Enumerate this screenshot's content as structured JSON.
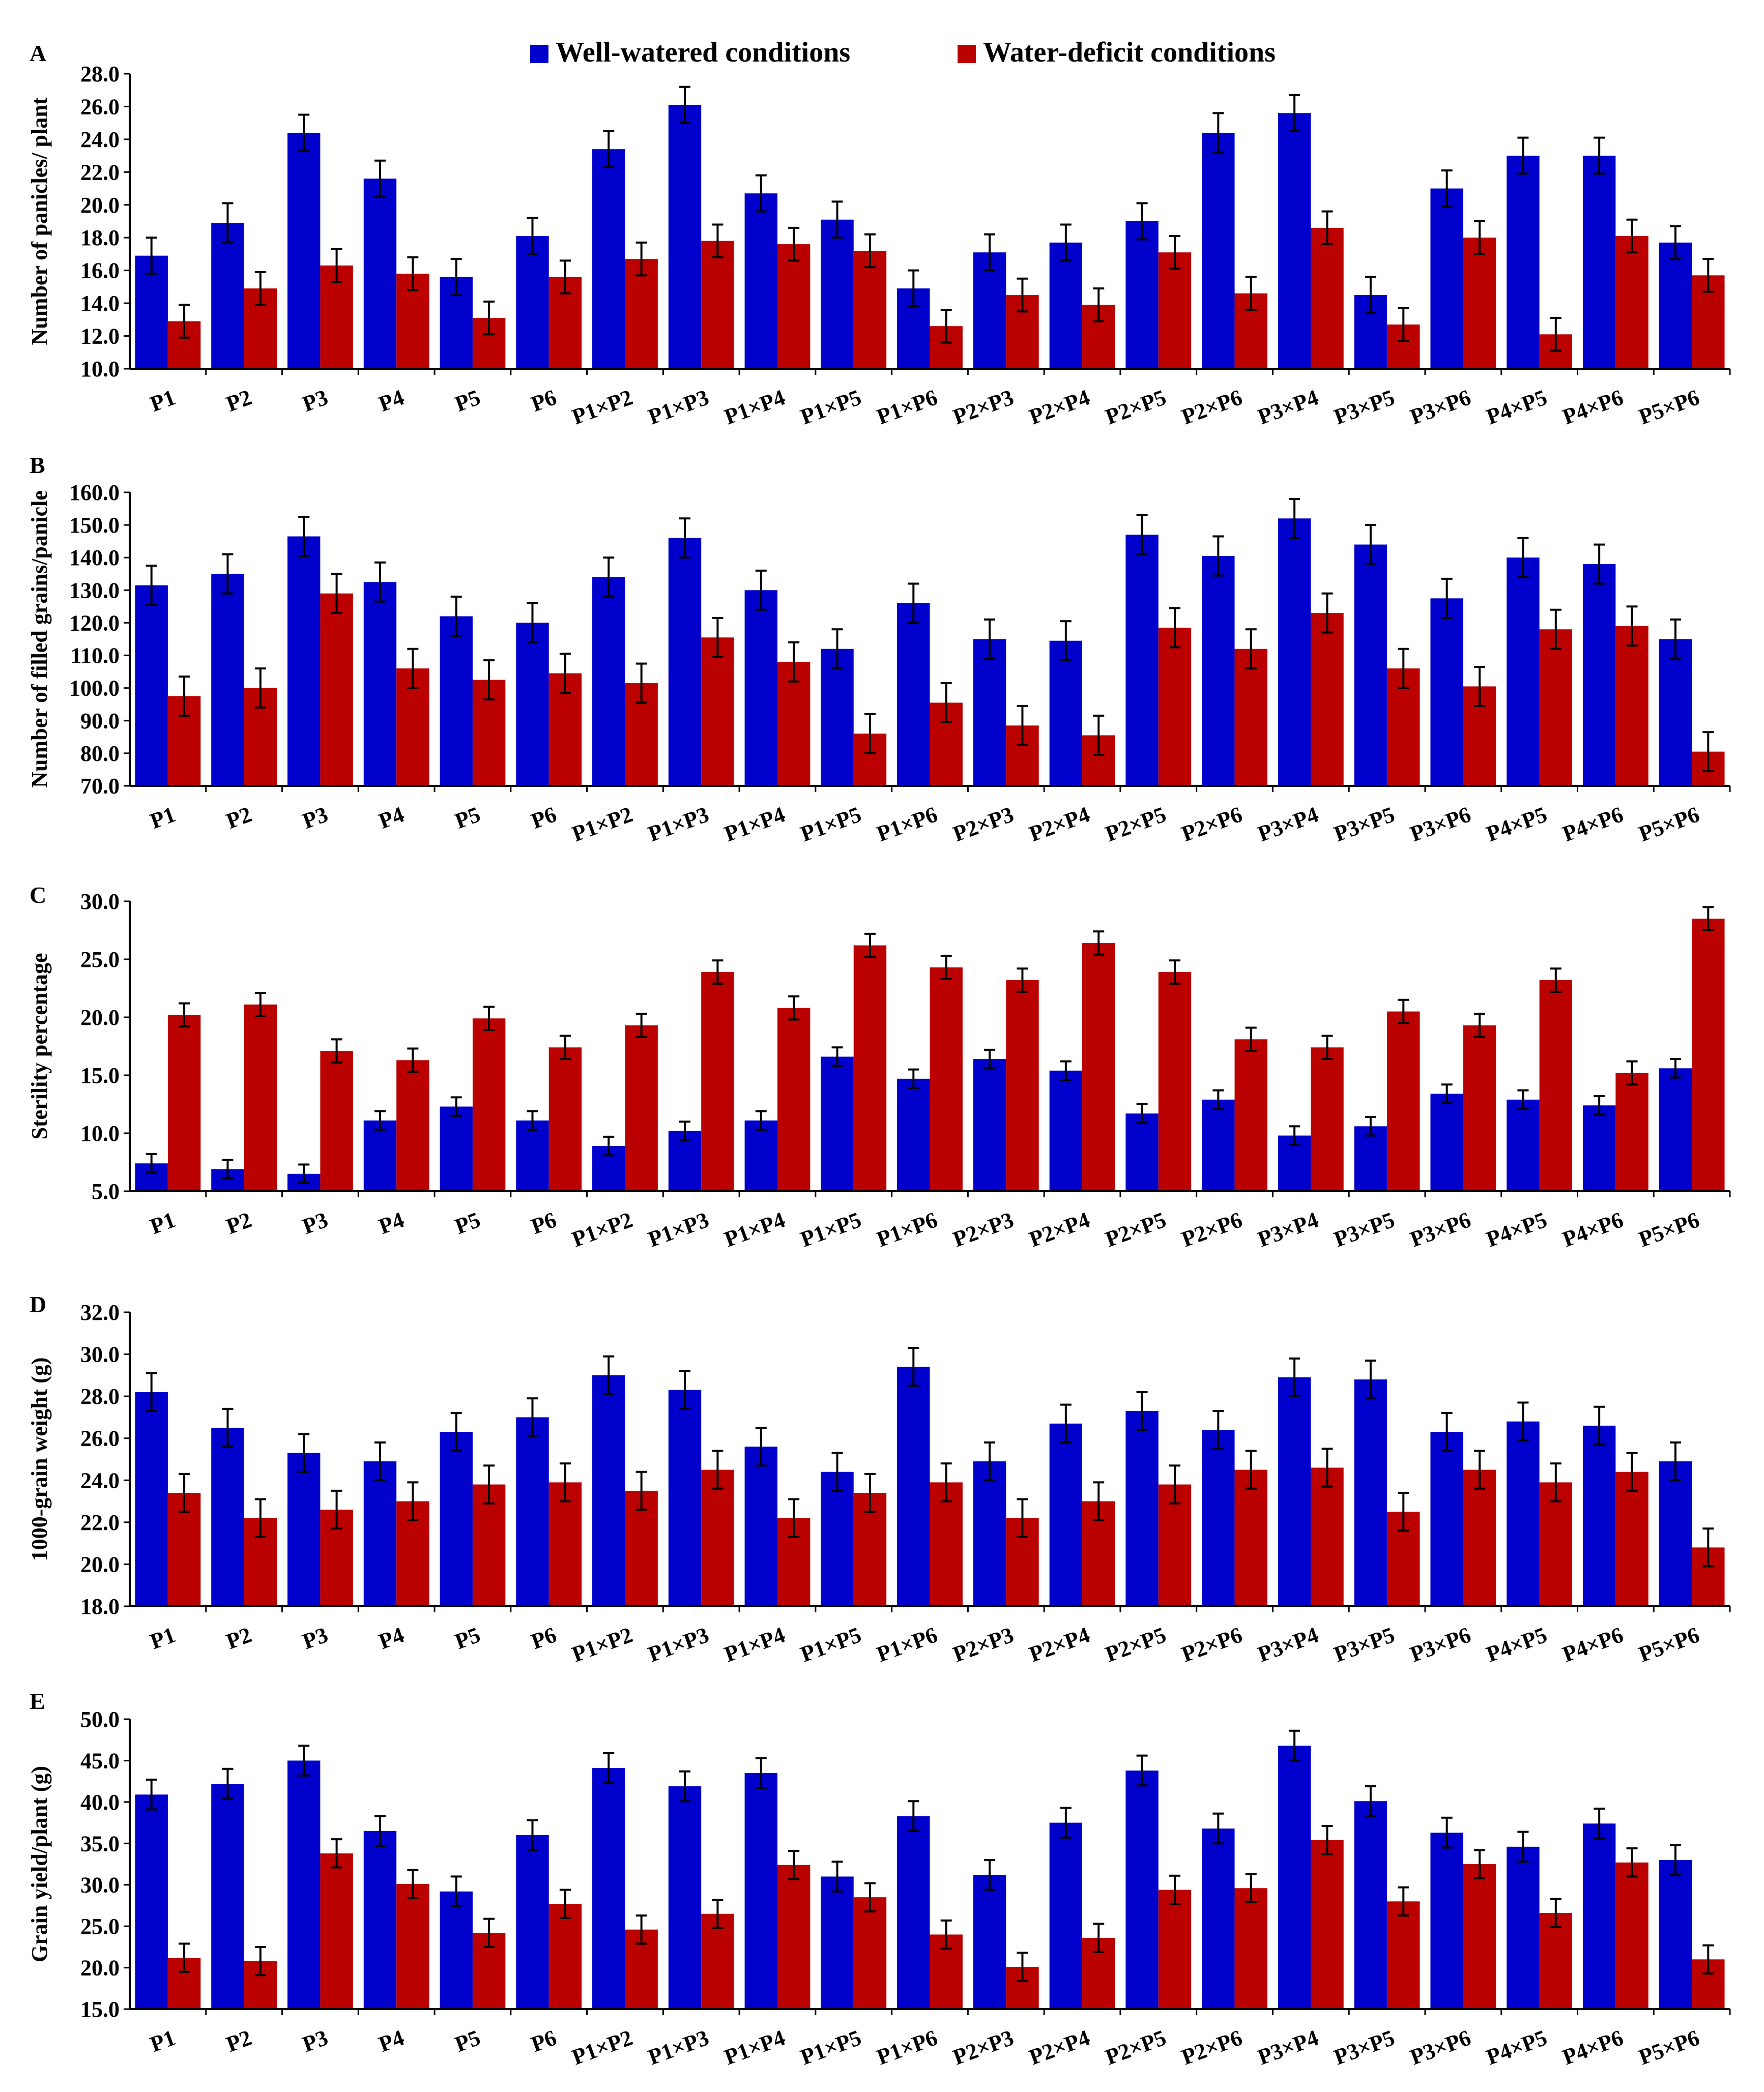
{
  "legend": {
    "well_label": "Well-watered conditions",
    "deficit_label": "Water-deficit conditions"
  },
  "colors": {
    "well": "#0000CC",
    "deficit": "#BB0000",
    "axis": "#000000"
  },
  "chart_data": [
    {
      "type": "bar",
      "panel": "A",
      "ylabel": "Number of panicles/ plant",
      "ylim": [
        10,
        28
      ],
      "ystep": 2,
      "decimals": 1,
      "categories": [
        "P1",
        "P2",
        "P3",
        "P4",
        "P5",
        "P6",
        "P1×P2",
        "P1×P3",
        "P1×P4",
        "P1×P5",
        "P1×P6",
        "P2×P3",
        "P2×P4",
        "P2×P5",
        "P2×P6",
        "P3×P4",
        "P3×P5",
        "P3×P6",
        "P4×P5",
        "P4×P6",
        "P5×P6"
      ],
      "series": [
        {
          "name": "Well-watered conditions",
          "values": [
            16.9,
            18.9,
            24.4,
            21.6,
            15.6,
            18.1,
            23.4,
            26.1,
            20.7,
            19.1,
            14.9,
            17.1,
            17.7,
            19.0,
            24.4,
            25.6,
            14.5,
            21.0,
            23.0,
            23.0,
            17.7
          ],
          "errors": [
            1.1,
            1.2,
            1.1,
            1.1,
            1.1,
            1.1,
            1.1,
            1.1,
            1.1,
            1.1,
            1.1,
            1.1,
            1.1,
            1.1,
            1.2,
            1.1,
            1.1,
            1.1,
            1.1,
            1.1,
            1.0
          ]
        },
        {
          "name": "Water-deficit conditions",
          "values": [
            12.9,
            14.9,
            16.3,
            15.8,
            13.1,
            15.6,
            16.7,
            17.8,
            17.6,
            17.2,
            12.6,
            14.5,
            13.9,
            17.1,
            14.6,
            18.6,
            12.7,
            18.0,
            12.1,
            18.1,
            15.7
          ],
          "errors": [
            1.0,
            1.0,
            1.0,
            1.0,
            1.0,
            1.0,
            1.0,
            1.0,
            1.0,
            1.0,
            1.0,
            1.0,
            1.0,
            1.0,
            1.0,
            1.0,
            1.0,
            1.0,
            1.0,
            1.0,
            1.0
          ]
        }
      ]
    },
    {
      "type": "bar",
      "panel": "B",
      "ylabel": "Number of filled grains/panicle",
      "ylim": [
        70,
        160
      ],
      "ystep": 10,
      "decimals": 1,
      "categories": [
        "P1",
        "P2",
        "P3",
        "P4",
        "P5",
        "P6",
        "P1×P2",
        "P1×P3",
        "P1×P4",
        "P1×P5",
        "P1×P6",
        "P2×P3",
        "P2×P4",
        "P2×P5",
        "P2×P6",
        "P3×P4",
        "P3×P5",
        "P3×P6",
        "P4×P5",
        "P4×P6",
        "P5×P6"
      ],
      "series": [
        {
          "name": "Well-watered conditions",
          "values": [
            131.5,
            135.0,
            146.5,
            132.5,
            122.0,
            120.0,
            134.0,
            146.0,
            130.0,
            112.0,
            126.0,
            115.0,
            114.5,
            147.0,
            140.5,
            152.0,
            144.0,
            127.5,
            140.0,
            138.0,
            115.0
          ],
          "errors": [
            6,
            6,
            6,
            6,
            6,
            6,
            6,
            6,
            6,
            6,
            6,
            6,
            6,
            6,
            6,
            6,
            6,
            6,
            6,
            6,
            6
          ]
        },
        {
          "name": "Water-deficit conditions",
          "values": [
            97.5,
            100.0,
            129.0,
            106.0,
            102.5,
            104.5,
            101.5,
            115.5,
            108.0,
            86.0,
            95.5,
            88.5,
            85.5,
            118.5,
            112.0,
            123.0,
            106.0,
            100.5,
            118.0,
            119.0,
            80.5
          ],
          "errors": [
            6,
            6,
            6,
            6,
            6,
            6,
            6,
            6,
            6,
            6,
            6,
            6,
            6,
            6,
            6,
            6,
            6,
            6,
            6,
            6,
            6
          ]
        }
      ]
    },
    {
      "type": "bar",
      "panel": "C",
      "ylabel": "Sterility percentage",
      "ylim": [
        5,
        30
      ],
      "ystep": 5,
      "decimals": 1,
      "categories": [
        "P1",
        "P2",
        "P3",
        "P4",
        "P5",
        "P6",
        "P1×P2",
        "P1×P3",
        "P1×P4",
        "P1×P5",
        "P1×P6",
        "P2×P3",
        "P2×P4",
        "P2×P5",
        "P2×P6",
        "P3×P4",
        "P3×P5",
        "P3×P6",
        "P4×P5",
        "P4×P6",
        "P5×P6"
      ],
      "series": [
        {
          "name": "Well-watered conditions",
          "values": [
            7.4,
            6.9,
            6.5,
            11.1,
            12.3,
            11.1,
            8.9,
            10.2,
            11.1,
            16.6,
            14.7,
            16.4,
            15.4,
            11.7,
            12.9,
            9.8,
            10.6,
            13.4,
            12.9,
            12.4,
            15.6
          ],
          "errors": [
            0.8,
            0.8,
            0.8,
            0.8,
            0.8,
            0.8,
            0.8,
            0.8,
            0.8,
            0.8,
            0.8,
            0.8,
            0.8,
            0.8,
            0.8,
            0.8,
            0.8,
            0.8,
            0.8,
            0.8,
            0.8
          ]
        },
        {
          "name": "Water-deficit conditions",
          "values": [
            20.2,
            21.1,
            17.1,
            16.3,
            19.9,
            17.4,
            19.3,
            23.9,
            20.8,
            26.2,
            24.3,
            23.2,
            26.4,
            23.9,
            18.1,
            17.4,
            20.5,
            19.3,
            23.2,
            15.2,
            28.5
          ],
          "errors": [
            1.0,
            1.0,
            1.0,
            1.0,
            1.0,
            1.0,
            1.0,
            1.0,
            1.0,
            1.0,
            1.0,
            1.0,
            1.0,
            1.0,
            1.0,
            1.0,
            1.0,
            1.0,
            1.0,
            1.0,
            1.0
          ]
        }
      ]
    },
    {
      "type": "bar",
      "panel": "D",
      "ylabel": "1000-grain weight  (g)",
      "ylim": [
        18,
        32
      ],
      "ystep": 2,
      "decimals": 1,
      "categories": [
        "P1",
        "P2",
        "P3",
        "P4",
        "P5",
        "P6",
        "P1×P2",
        "P1×P3",
        "P1×P4",
        "P1×P5",
        "P1×P6",
        "P2×P3",
        "P2×P4",
        "P2×P5",
        "P2×P6",
        "P3×P4",
        "P3×P5",
        "P3×P6",
        "P4×P5",
        "P4×P6",
        "P5×P6"
      ],
      "series": [
        {
          "name": "Well-watered conditions",
          "values": [
            28.2,
            26.5,
            25.3,
            24.9,
            26.3,
            27.0,
            29.0,
            28.3,
            25.6,
            24.4,
            29.4,
            24.9,
            26.7,
            27.3,
            26.4,
            28.9,
            28.8,
            26.3,
            26.8,
            26.6,
            24.9
          ],
          "errors": [
            0.9,
            0.9,
            0.9,
            0.9,
            0.9,
            0.9,
            0.9,
            0.9,
            0.9,
            0.9,
            0.9,
            0.9,
            0.9,
            0.9,
            0.9,
            0.9,
            0.9,
            0.9,
            0.9,
            0.9,
            0.9
          ]
        },
        {
          "name": "Water-deficit conditions",
          "values": [
            23.4,
            22.2,
            22.6,
            23.0,
            23.8,
            23.9,
            23.5,
            24.5,
            22.2,
            23.4,
            23.9,
            22.2,
            23.0,
            23.8,
            24.5,
            24.6,
            22.5,
            24.5,
            23.9,
            24.4,
            20.8
          ],
          "errors": [
            0.9,
            0.9,
            0.9,
            0.9,
            0.9,
            0.9,
            0.9,
            0.9,
            0.9,
            0.9,
            0.9,
            0.9,
            0.9,
            0.9,
            0.9,
            0.9,
            0.9,
            0.9,
            0.9,
            0.9,
            0.9
          ]
        }
      ]
    },
    {
      "type": "bar",
      "panel": "E",
      "ylabel": "Grain yield/plant  (g)",
      "ylim": [
        15,
        50
      ],
      "ystep": 5,
      "decimals": 1,
      "categories": [
        "P1",
        "P2",
        "P3",
        "P4",
        "P5",
        "P6",
        "P1×P2",
        "P1×P3",
        "P1×P4",
        "P1×P5",
        "P1×P6",
        "P2×P3",
        "P2×P4",
        "P2×P5",
        "P2×P6",
        "P3×P4",
        "P3×P5",
        "P3×P6",
        "P4×P5",
        "P4×P6",
        "P5×P6"
      ],
      "series": [
        {
          "name": "Well-watered conditions",
          "values": [
            40.9,
            42.2,
            45.0,
            36.5,
            29.2,
            36.0,
            44.1,
            41.9,
            43.5,
            31.0,
            38.3,
            31.2,
            37.5,
            43.8,
            36.8,
            46.8,
            40.1,
            36.3,
            34.6,
            37.4,
            33.0
          ],
          "errors": [
            1.8,
            1.8,
            1.8,
            1.8,
            1.8,
            1.8,
            1.8,
            1.8,
            1.8,
            1.8,
            1.8,
            1.8,
            1.8,
            1.8,
            1.8,
            1.8,
            1.8,
            1.8,
            1.8,
            1.8,
            1.8
          ]
        },
        {
          "name": "Water-deficit conditions",
          "values": [
            21.2,
            20.8,
            33.8,
            30.1,
            24.2,
            27.7,
            24.6,
            26.5,
            32.4,
            28.5,
            24.0,
            20.1,
            23.6,
            29.4,
            29.6,
            35.4,
            28.0,
            32.5,
            26.6,
            32.7,
            21.0
          ],
          "errors": [
            1.7,
            1.7,
            1.7,
            1.7,
            1.7,
            1.7,
            1.7,
            1.7,
            1.7,
            1.7,
            1.7,
            1.7,
            1.7,
            1.7,
            1.7,
            1.7,
            1.7,
            1.7,
            1.7,
            1.7,
            1.7
          ]
        }
      ]
    }
  ]
}
